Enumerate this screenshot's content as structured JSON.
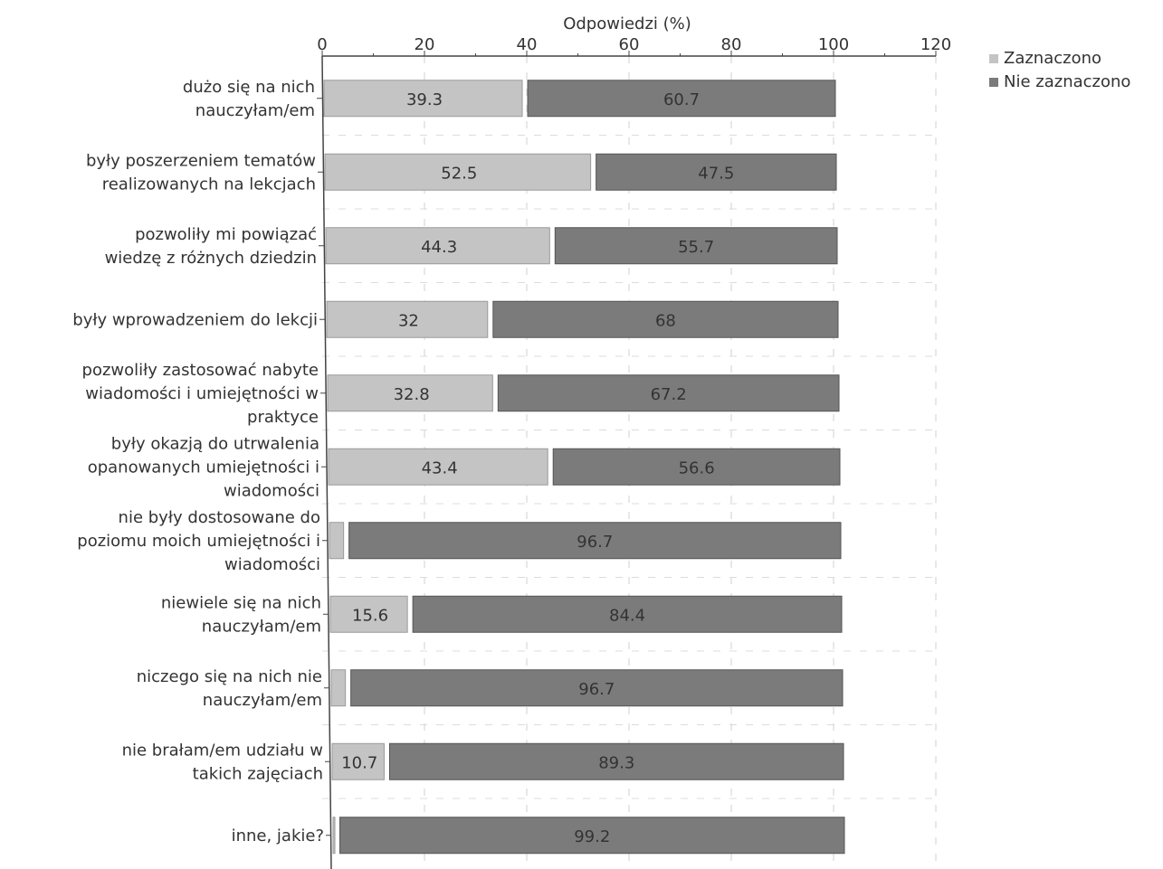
{
  "chart_data": {
    "type": "bar",
    "orientation": "horizontal",
    "stacked": true,
    "xlabel": "Odpowiedzi (%)",
    "xlim": [
      0,
      120
    ],
    "xticks": [
      0,
      20,
      40,
      60,
      80,
      100,
      120
    ],
    "grid": true,
    "legend_position": "top-right",
    "categories": [
      [
        "dużo się na nich",
        "nauczyłam/em"
      ],
      [
        "były poszerzeniem tematów",
        "realizowanych na lekcjach"
      ],
      [
        "pozwoliły mi powiązać",
        "wiedzę z różnych dziedzin"
      ],
      [
        "były wprowadzeniem do lekcji"
      ],
      [
        "pozwoliły zastosować nabyte",
        "wiadomości i umiejętności w",
        "praktyce"
      ],
      [
        "były okazją do utrwalenia",
        "opanowanych umiejętności i",
        "wiadomości"
      ],
      [
        "nie były dostosowane do",
        "poziomu moich umiejętności i",
        "wiadomości"
      ],
      [
        "niewiele się na nich",
        "nauczyłam/em"
      ],
      [
        "niczego się na nich nie",
        "nauczyłam/em"
      ],
      [
        "nie brałam/em udziału w",
        "takich zajęciach"
      ],
      [
        "inne, jakie?"
      ]
    ],
    "series": [
      {
        "name": "Zaznaczono",
        "color": "#c4c4c4",
        "values": [
          39.3,
          52.5,
          44.3,
          32,
          32.8,
          43.4,
          3.3,
          15.6,
          3.3,
          10.7,
          0.8
        ],
        "labels": [
          "39.3",
          "52.5",
          "44.3",
          "32",
          "32.8",
          "43.4",
          "",
          "15.6",
          "",
          "10.7",
          ""
        ]
      },
      {
        "name": "Nie zaznaczono",
        "color": "#7b7b7b",
        "values": [
          60.7,
          47.5,
          55.7,
          68,
          67.2,
          56.6,
          96.7,
          84.4,
          96.7,
          89.3,
          99.2
        ],
        "labels": [
          "60.7",
          "47.5",
          "55.7",
          "68",
          "67.2",
          "56.6",
          "96.7",
          "84.4",
          "96.7",
          "89.3",
          "99.2"
        ]
      }
    ]
  }
}
